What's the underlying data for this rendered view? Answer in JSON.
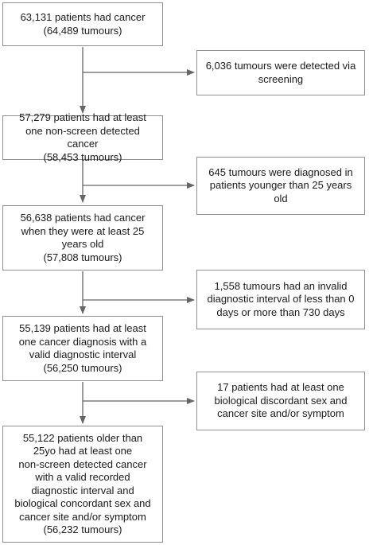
{
  "main_steps": [
    "63,131 patients had cancer\n(64,489 tumours)",
    "57,279 patients had at least\none non-screen detected\ncancer\n(58,453 tumours)",
    "56,638 patients had cancer\nwhen they were at least 25\nyears old\n(57,808 tumours)",
    "55,139 patients had at least\none cancer diagnosis with a\nvalid diagnostic interval\n(56,250 tumours)",
    "55,122 patients older than\n25yo had at least one\nnon-screen detected cancer\nwith a valid recorded\ndiagnostic interval and\nbiological concordant sex and\ncancer site and/or symptom\n(56,232 tumours)"
  ],
  "exclusions": [
    "6,036 tumours were detected via\nscreening",
    "645 tumours were diagnosed in\npatients younger than 25 years\nold",
    "1,558 tumours had an invalid\ndiagnostic interval of less than 0\ndays or more than 730 days",
    "17 patients had at least one\nbiological discordant sex and\ncancer site and/or symptom"
  ]
}
